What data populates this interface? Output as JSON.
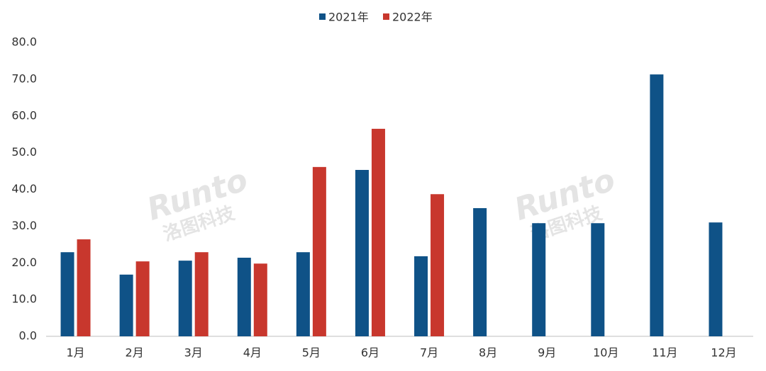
{
  "chart_data": {
    "type": "bar",
    "categories": [
      "1月",
      "2月",
      "3月",
      "4月",
      "5月",
      "6月",
      "7月",
      "8月",
      "9月",
      "10月",
      "11月",
      "12月"
    ],
    "series": [
      {
        "name": "2021年",
        "color": "#0f5287",
        "values": [
          22.9,
          16.8,
          20.6,
          21.4,
          22.9,
          45.3,
          21.8,
          34.9,
          30.8,
          30.8,
          71.3,
          31.0
        ]
      },
      {
        "name": "2022年",
        "color": "#c8372d",
        "values": [
          26.4,
          20.4,
          22.9,
          19.8,
          46.1,
          56.5,
          38.7,
          null,
          null,
          null,
          null,
          null
        ]
      }
    ],
    "ylim": [
      0,
      80
    ],
    "yticks": [
      {
        "value": 0,
        "label": "0.0"
      },
      {
        "value": 10,
        "label": "10.0"
      },
      {
        "value": 20,
        "label": "20.0"
      },
      {
        "value": 30,
        "label": "30.0"
      },
      {
        "value": 40,
        "label": "40.0"
      },
      {
        "value": 50,
        "label": "50.0"
      },
      {
        "value": 60,
        "label": "60.0"
      },
      {
        "value": 70,
        "label": "70.0"
      },
      {
        "value": 80,
        "label": "80.0"
      }
    ],
    "grid": false,
    "legend": "top",
    "watermark": [
      "Runto",
      "洛图科技"
    ]
  }
}
